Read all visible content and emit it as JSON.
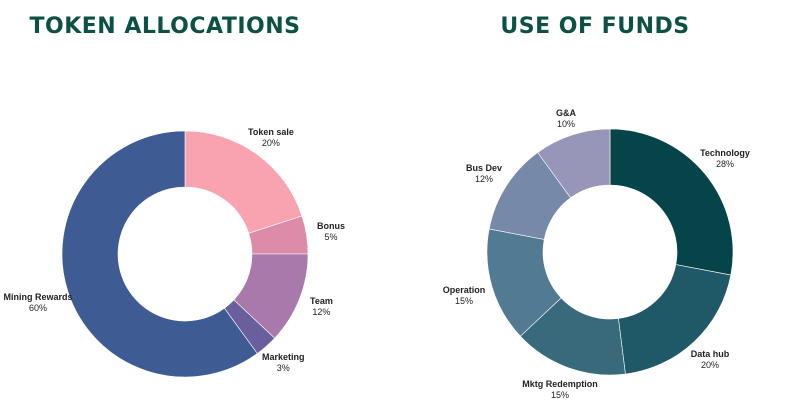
{
  "theme": {
    "title_color": "#0d5145",
    "slice_border": "#ffffff",
    "label_color": "#222222"
  },
  "chart_data": [
    {
      "type": "pie",
      "title": "TOKEN ALLOCATIONS",
      "donut": true,
      "start": "12 o'clock",
      "direction": "clockwise",
      "slices": [
        {
          "label": "Token sale",
          "value": 20,
          "value_label": "20%",
          "color": "#f9a3b1"
        },
        {
          "label": "Bonus",
          "value": 5,
          "value_label": "5%",
          "color": "#dc8ca9"
        },
        {
          "label": "Team",
          "value": 12,
          "value_label": "12%",
          "color": "#a979ab"
        },
        {
          "label": "Marketing",
          "value": 3,
          "value_label": "3%",
          "color": "#6a5f9c"
        },
        {
          "label": "Mining Rewards",
          "value": 60,
          "value_label": "60%",
          "color": "#3f5b93"
        }
      ]
    },
    {
      "type": "pie",
      "title": "USE OF FUNDS",
      "donut": true,
      "start": "12 o'clock",
      "direction": "clockwise",
      "slices": [
        {
          "label": "Technology",
          "value": 28,
          "value_label": "28%",
          "color": "#05454a"
        },
        {
          "label": "Data hub",
          "value": 20,
          "value_label": "20%",
          "color": "#1f5866"
        },
        {
          "label": "Mktg Redemption",
          "value": 15,
          "value_label": "15%",
          "color": "#396a7b"
        },
        {
          "label": "Operation",
          "value": 15,
          "value_label": "15%",
          "color": "#527a92"
        },
        {
          "label": "Bus Dev",
          "value": 12,
          "value_label": "12%",
          "color": "#7789a8"
        },
        {
          "label": "G&A",
          "value": 10,
          "value_label": "10%",
          "color": "#9896b8"
        }
      ]
    }
  ]
}
